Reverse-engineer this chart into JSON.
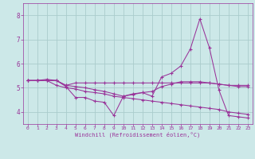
{
  "background_color": "#cce8e8",
  "grid_color": "#aacccc",
  "line_color": "#993399",
  "marker": "+",
  "xlabel": "Windchill (Refroidissement éolien,°C)",
  "xlabel_color": "#993399",
  "tick_color": "#993399",
  "ylabel_ticks": [
    4,
    5,
    6,
    7,
    8
  ],
  "xlim": [
    -0.5,
    23.5
  ],
  "ylim": [
    3.5,
    8.5
  ],
  "series1_x": [
    0,
    1,
    2,
    3,
    4,
    5,
    6,
    7,
    8,
    9,
    10,
    11,
    12,
    13,
    14,
    15,
    16,
    17,
    18,
    19,
    20,
    21,
    22,
    23
  ],
  "series1_y": [
    5.3,
    5.3,
    5.3,
    5.3,
    5.1,
    5.2,
    5.2,
    5.2,
    5.2,
    5.2,
    5.2,
    5.2,
    5.2,
    5.2,
    5.2,
    5.2,
    5.2,
    5.2,
    5.2,
    5.2,
    5.15,
    5.1,
    5.1,
    5.1
  ],
  "series2_x": [
    0,
    1,
    2,
    3,
    4,
    5,
    6,
    7,
    8,
    9,
    10,
    11,
    12,
    13,
    14,
    15,
    16,
    17,
    18,
    19,
    20,
    21,
    22,
    23
  ],
  "series2_y": [
    5.3,
    5.3,
    5.35,
    5.3,
    5.05,
    4.6,
    4.6,
    4.45,
    4.4,
    3.85,
    4.65,
    4.75,
    4.8,
    4.65,
    5.45,
    5.6,
    5.9,
    6.6,
    7.85,
    6.65,
    4.9,
    3.85,
    3.8,
    3.75
  ],
  "series3_x": [
    0,
    1,
    2,
    3,
    4,
    5,
    6,
    7,
    8,
    9,
    10,
    11,
    12,
    13,
    14,
    15,
    16,
    17,
    18,
    19,
    20,
    21,
    22,
    23
  ],
  "series3_y": [
    5.3,
    5.3,
    5.3,
    5.1,
    5.0,
    4.95,
    4.85,
    4.8,
    4.75,
    4.65,
    4.6,
    4.55,
    4.5,
    4.45,
    4.4,
    4.35,
    4.3,
    4.25,
    4.2,
    4.15,
    4.1,
    4.0,
    3.95,
    3.9
  ],
  "series4_x": [
    0,
    1,
    2,
    3,
    4,
    5,
    6,
    7,
    8,
    9,
    10,
    11,
    12,
    13,
    14,
    15,
    16,
    17,
    18,
    19,
    20,
    21,
    22,
    23
  ],
  "series4_y": [
    5.3,
    5.3,
    5.3,
    5.3,
    5.1,
    5.05,
    5.0,
    4.92,
    4.85,
    4.75,
    4.65,
    4.72,
    4.8,
    4.85,
    5.05,
    5.15,
    5.25,
    5.25,
    5.25,
    5.2,
    5.15,
    5.1,
    5.05,
    5.05
  ]
}
